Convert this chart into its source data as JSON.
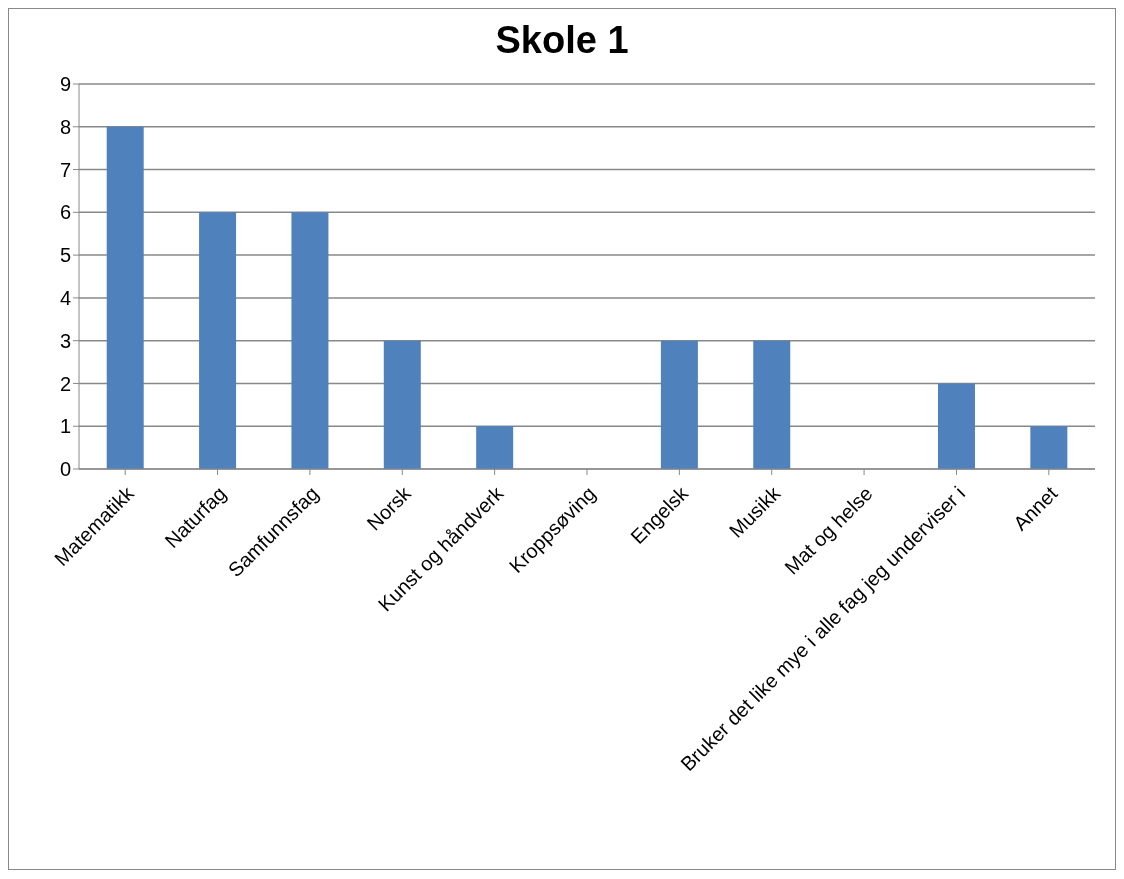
{
  "chart_data": {
    "type": "bar",
    "title": "Skole 1",
    "categories": [
      "Matematikk",
      "Naturfag",
      "Samfunnsfag",
      "Norsk",
      "Kunst og håndverk",
      "Kroppsøving",
      "Engelsk",
      "Musikk",
      "Mat og helse",
      "Bruker det like mye i alle fag jeg underviser i",
      "Annet"
    ],
    "values": [
      8,
      6,
      6,
      3,
      1,
      0,
      3,
      3,
      0,
      2,
      1
    ],
    "color": "#4f81bd",
    "ylim": [
      0,
      9
    ],
    "yticks": [
      0,
      1,
      2,
      3,
      4,
      5,
      6,
      7,
      8,
      9
    ],
    "grid": "y"
  }
}
